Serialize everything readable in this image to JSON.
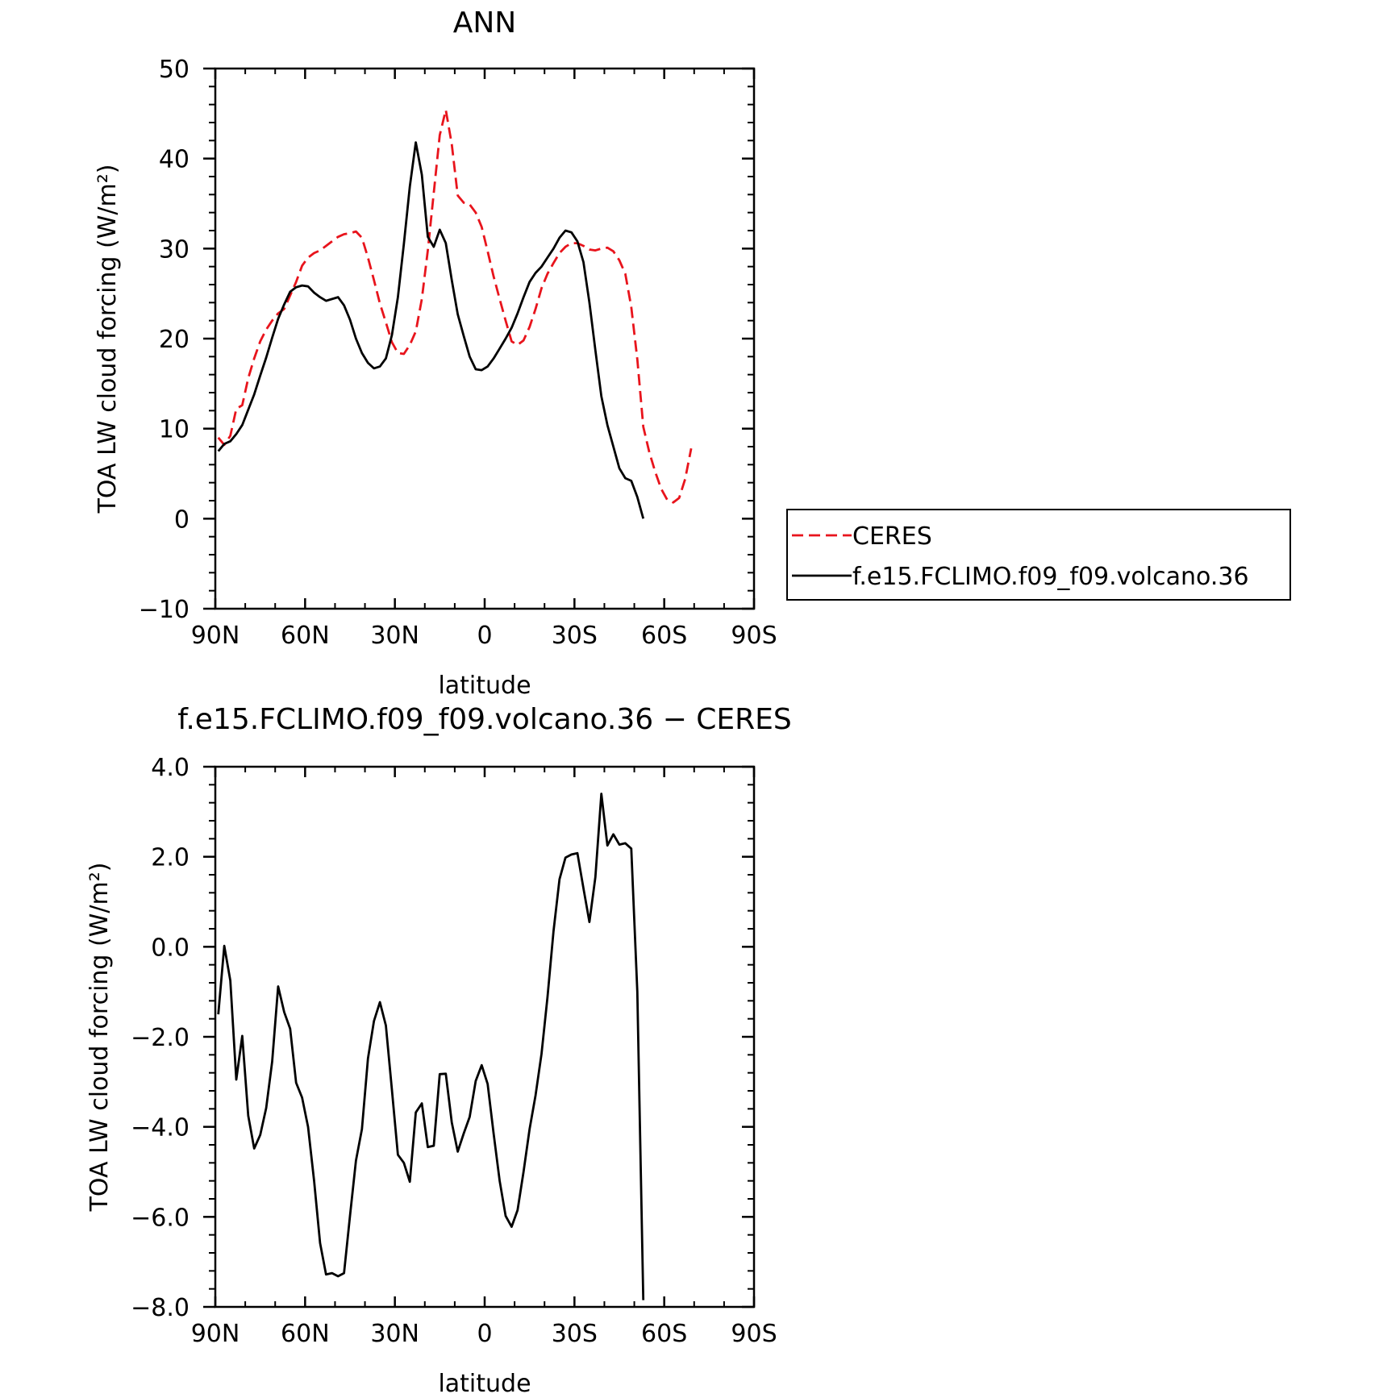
{
  "chart_data": [
    {
      "type": "line",
      "title": "ANN",
      "xlabel": "latitude",
      "ylabel": "TOA LW cloud forcing (W/m²)",
      "xlim": [
        90,
        -90
      ],
      "ylim": [
        -10,
        50
      ],
      "x_ticks": [
        {
          "value": 90,
          "label": "90N"
        },
        {
          "value": 60,
          "label": "60N"
        },
        {
          "value": 30,
          "label": "30N"
        },
        {
          "value": 0,
          "label": "0"
        },
        {
          "value": -30,
          "label": "30S"
        },
        {
          "value": -60,
          "label": "60S"
        },
        {
          "value": -90,
          "label": "90S"
        }
      ],
      "y_ticks": [
        {
          "value": -10,
          "label": "−10"
        },
        {
          "value": 0,
          "label": "0"
        },
        {
          "value": 10,
          "label": "10"
        },
        {
          "value": 20,
          "label": "20"
        },
        {
          "value": 30,
          "label": "30"
        },
        {
          "value": 40,
          "label": "40"
        },
        {
          "value": 50,
          "label": "50"
        }
      ],
      "legend_position": "right",
      "series": [
        {
          "name": "CERES",
          "color": "#e8141c",
          "dash": true,
          "points": [
            [
              89,
              9.0
            ],
            [
              87,
              8.2
            ],
            [
              85,
              9.2
            ],
            [
              83,
              12.2
            ],
            [
              81,
              12.6
            ],
            [
              79,
              15.6
            ],
            [
              77,
              17.8
            ],
            [
              75,
              19.7
            ],
            [
              73,
              21.0
            ],
            [
              71,
              22.0
            ],
            [
              69,
              22.8
            ],
            [
              67,
              23.3
            ],
            [
              65,
              24.8
            ],
            [
              63,
              26.3
            ],
            [
              61,
              28.1
            ],
            [
              59,
              29.0
            ],
            [
              57,
              29.5
            ],
            [
              55,
              29.8
            ],
            [
              53,
              30.3
            ],
            [
              51,
              30.8
            ],
            [
              49,
              31.3
            ],
            [
              47,
              31.6
            ],
            [
              45,
              31.7
            ],
            [
              43,
              31.9
            ],
            [
              41,
              31.2
            ],
            [
              39,
              29.0
            ],
            [
              37,
              26.5
            ],
            [
              35,
              23.9
            ],
            [
              33,
              21.8
            ],
            [
              31,
              19.6
            ],
            [
              29,
              18.4
            ],
            [
              27,
              18.3
            ],
            [
              25,
              19.3
            ],
            [
              23,
              20.8
            ],
            [
              21,
              24.4
            ],
            [
              19,
              29.8
            ],
            [
              17,
              36.2
            ],
            [
              15,
              42.6
            ],
            [
              13,
              45.4
            ],
            [
              11,
              41.6
            ],
            [
              9,
              35.9
            ],
            [
              7,
              35.1
            ],
            [
              5,
              34.9
            ],
            [
              3,
              34.0
            ],
            [
              1,
              32.4
            ],
            [
              -1,
              29.7
            ],
            [
              -3,
              26.9
            ],
            [
              -5,
              24.4
            ],
            [
              -7,
              22.0
            ],
            [
              -9,
              19.7
            ],
            [
              -11,
              19.3
            ],
            [
              -13,
              19.8
            ],
            [
              -15,
              21.3
            ],
            [
              -17,
              23.3
            ],
            [
              -19,
              25.6
            ],
            [
              -21,
              27.2
            ],
            [
              -23,
              28.4
            ],
            [
              -25,
              29.5
            ],
            [
              -27,
              30.2
            ],
            [
              -29,
              30.6
            ],
            [
              -31,
              30.6
            ],
            [
              -33,
              30.3
            ],
            [
              -35,
              29.9
            ],
            [
              -37,
              29.8
            ],
            [
              -39,
              30.0
            ],
            [
              -41,
              30.1
            ],
            [
              -43,
              29.7
            ],
            [
              -45,
              28.7
            ],
            [
              -47,
              27.2
            ],
            [
              -49,
              23.5
            ],
            [
              -51,
              17.7
            ],
            [
              -53,
              10.2
            ],
            [
              -55,
              7.4
            ],
            [
              -57,
              5.2
            ],
            [
              -59,
              3.3
            ],
            [
              -61,
              2.1
            ],
            [
              -63,
              1.8
            ],
            [
              -65,
              2.3
            ],
            [
              -67,
              4.4
            ],
            [
              -69,
              7.8
            ]
          ]
        },
        {
          "name": "f.e15.FCLIMO.f09_f09.volcano.36",
          "color": "#000000",
          "dash": false,
          "points": [
            [
              89,
              7.5
            ],
            [
              87,
              8.3
            ],
            [
              85,
              8.6
            ],
            [
              83,
              9.4
            ],
            [
              81,
              10.4
            ],
            [
              79,
              12.1
            ],
            [
              77,
              13.8
            ],
            [
              75,
              15.9
            ],
            [
              73,
              17.9
            ],
            [
              71,
              20.1
            ],
            [
              69,
              22.2
            ],
            [
              67,
              23.8
            ],
            [
              65,
              25.2
            ],
            [
              63,
              25.7
            ],
            [
              61,
              25.9
            ],
            [
              59,
              25.8
            ],
            [
              57,
              25.1
            ],
            [
              55,
              24.6
            ],
            [
              53,
              24.2
            ],
            [
              51,
              24.4
            ],
            [
              49,
              24.6
            ],
            [
              47,
              23.7
            ],
            [
              45,
              22.1
            ],
            [
              43,
              20.0
            ],
            [
              41,
              18.4
            ],
            [
              39,
              17.3
            ],
            [
              37,
              16.7
            ],
            [
              35,
              16.9
            ],
            [
              33,
              17.8
            ],
            [
              31,
              20.4
            ],
            [
              29,
              24.6
            ],
            [
              27,
              30.5
            ],
            [
              25,
              36.9
            ],
            [
              23,
              41.8
            ],
            [
              21,
              38.2
            ],
            [
              19,
              31.3
            ],
            [
              17,
              30.2
            ],
            [
              15,
              32.1
            ],
            [
              13,
              30.6
            ],
            [
              11,
              26.5
            ],
            [
              9,
              22.7
            ],
            [
              7,
              20.3
            ],
            [
              5,
              18.0
            ],
            [
              3,
              16.6
            ],
            [
              1,
              16.5
            ],
            [
              -1,
              16.9
            ],
            [
              -3,
              17.8
            ],
            [
              -5,
              18.9
            ],
            [
              -7,
              20.0
            ],
            [
              -9,
              21.2
            ],
            [
              -11,
              22.8
            ],
            [
              -13,
              24.6
            ],
            [
              -15,
              26.3
            ],
            [
              -17,
              27.3
            ],
            [
              -19,
              28.0
            ],
            [
              -21,
              29.0
            ],
            [
              -23,
              30.0
            ],
            [
              -25,
              31.2
            ],
            [
              -27,
              32.0
            ],
            [
              -29,
              31.8
            ],
            [
              -31,
              30.8
            ],
            [
              -33,
              28.5
            ],
            [
              -35,
              24.0
            ],
            [
              -37,
              18.7
            ],
            [
              -39,
              13.6
            ],
            [
              -41,
              10.4
            ],
            [
              -43,
              8.0
            ],
            [
              -45,
              5.6
            ],
            [
              -47,
              4.5
            ],
            [
              -49,
              4.2
            ],
            [
              -51,
              2.4
            ],
            [
              -53,
              0.0
            ]
          ]
        }
      ]
    },
    {
      "type": "line",
      "title": "f.e15.FCLIMO.f09_f09.volcano.36 − CERES",
      "xlabel": "latitude",
      "ylabel": "TOA LW cloud forcing (W/m²)",
      "xlim": [
        90,
        -90
      ],
      "ylim": [
        -8,
        4
      ],
      "x_ticks": [
        {
          "value": 90,
          "label": "90N"
        },
        {
          "value": 60,
          "label": "60N"
        },
        {
          "value": 30,
          "label": "30N"
        },
        {
          "value": 0,
          "label": "0"
        },
        {
          "value": -30,
          "label": "30S"
        },
        {
          "value": -60,
          "label": "60S"
        },
        {
          "value": -90,
          "label": "90S"
        }
      ],
      "y_ticks": [
        {
          "value": -8,
          "label": "−8.0"
        },
        {
          "value": -6,
          "label": "−6.0"
        },
        {
          "value": -4,
          "label": "−4.0"
        },
        {
          "value": -2,
          "label": "−2.0"
        },
        {
          "value": 0,
          "label": "0.0"
        },
        {
          "value": 2,
          "label": "2.0"
        },
        {
          "value": 4,
          "label": "4.0"
        }
      ],
      "series": [
        {
          "color": "#000000",
          "dash": false,
          "points": [
            [
              89,
              -1.5
            ],
            [
              87,
              0.02
            ],
            [
              85,
              -0.75
            ],
            [
              83,
              -2.95
            ],
            [
              81,
              -1.98
            ],
            [
              79,
              -3.75
            ],
            [
              77,
              -4.48
            ],
            [
              75,
              -4.18
            ],
            [
              73,
              -3.58
            ],
            [
              71,
              -2.55
            ],
            [
              69,
              -0.88
            ],
            [
              67,
              -1.45
            ],
            [
              65,
              -1.82
            ],
            [
              63,
              -3.02
            ],
            [
              61,
              -3.35
            ],
            [
              59,
              -4.0
            ],
            [
              57,
              -5.2
            ],
            [
              55,
              -6.58
            ],
            [
              53,
              -7.28
            ],
            [
              51,
              -7.25
            ],
            [
              49,
              -7.32
            ],
            [
              47,
              -7.25
            ],
            [
              45,
              -5.98
            ],
            [
              43,
              -4.75
            ],
            [
              41,
              -4.05
            ],
            [
              39,
              -2.48
            ],
            [
              37,
              -1.65
            ],
            [
              35,
              -1.23
            ],
            [
              33,
              -1.75
            ],
            [
              31,
              -3.18
            ],
            [
              29,
              -4.62
            ],
            [
              27,
              -4.8
            ],
            [
              25,
              -5.22
            ],
            [
              23,
              -3.68
            ],
            [
              21,
              -3.48
            ],
            [
              19,
              -4.45
            ],
            [
              17,
              -4.42
            ],
            [
              15,
              -2.83
            ],
            [
              13,
              -2.82
            ],
            [
              11,
              -3.9
            ],
            [
              9,
              -4.55
            ],
            [
              7,
              -4.15
            ],
            [
              5,
              -3.78
            ],
            [
              3,
              -2.98
            ],
            [
              1,
              -2.63
            ],
            [
              -1,
              -3.05
            ],
            [
              -3,
              -4.15
            ],
            [
              -5,
              -5.2
            ],
            [
              -7,
              -5.98
            ],
            [
              -9,
              -6.22
            ],
            [
              -11,
              -5.85
            ],
            [
              -13,
              -5.0
            ],
            [
              -15,
              -4.05
            ],
            [
              -17,
              -3.3
            ],
            [
              -19,
              -2.38
            ],
            [
              -21,
              -1.12
            ],
            [
              -23,
              0.35
            ],
            [
              -25,
              1.5
            ],
            [
              -27,
              1.98
            ],
            [
              -29,
              2.05
            ],
            [
              -31,
              2.08
            ],
            [
              -33,
              1.3
            ],
            [
              -35,
              0.55
            ],
            [
              -37,
              1.55
            ],
            [
              -39,
              3.4
            ],
            [
              -41,
              2.25
            ],
            [
              -43,
              2.5
            ],
            [
              -45,
              2.27
            ],
            [
              -47,
              2.3
            ],
            [
              -49,
              2.18
            ],
            [
              -51,
              -1.0
            ],
            [
              -53,
              -7.85
            ]
          ]
        }
      ]
    }
  ]
}
